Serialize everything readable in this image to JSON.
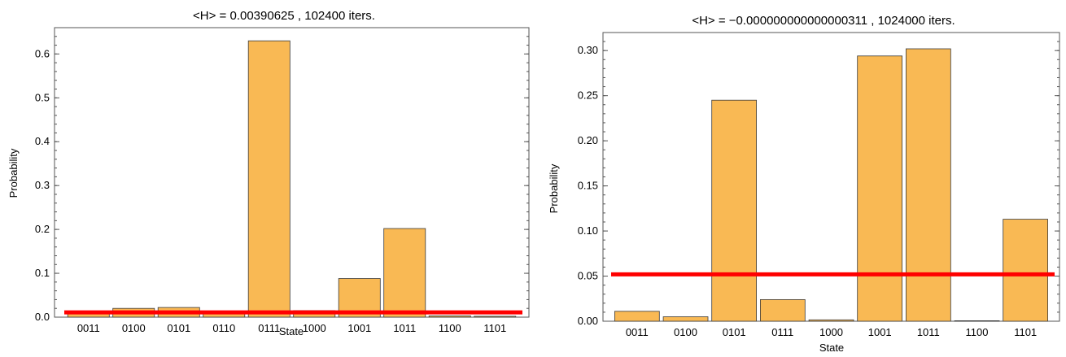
{
  "chart_data": [
    {
      "type": "bar",
      "title": "<H> = 0.00390625 , 102400 iters.",
      "xlabel": "State",
      "ylabel": "Probability",
      "categories": [
        "0011",
        "0100",
        "0101",
        "0110",
        "0111",
        "1000",
        "1001",
        "1011",
        "1100",
        "1101"
      ],
      "values": [
        0.01,
        0.02,
        0.022,
        0.01,
        0.63,
        0.015,
        0.088,
        0.202,
        0.003,
        0.002
      ],
      "ylim": [
        0,
        0.66
      ],
      "yticks": [
        0.0,
        0.1,
        0.2,
        0.3,
        0.4,
        0.5,
        0.6
      ],
      "ytick_labels": [
        "0.0",
        "0.1",
        "0.2",
        "0.3",
        "0.4",
        "0.5",
        "0.6"
      ],
      "reference_line": 0.011,
      "reference_color": "#ff0000",
      "bar_color": "#f9b954",
      "grid": false
    },
    {
      "type": "bar",
      "title": "<H> = −0.000000000000000311 , 1024000 iters.",
      "xlabel": "State",
      "ylabel": "Probability",
      "categories": [
        "0011",
        "0100",
        "0101",
        "0111",
        "1000",
        "1001",
        "1011",
        "1100",
        "1101"
      ],
      "values": [
        0.011,
        0.005,
        0.245,
        0.024,
        0.0015,
        0.294,
        0.302,
        0.0005,
        0.113
      ],
      "ylim": [
        0,
        0.32
      ],
      "yticks": [
        0.0,
        0.05,
        0.1,
        0.15,
        0.2,
        0.25,
        0.3
      ],
      "ytick_labels": [
        "0.00",
        "0.05",
        "0.10",
        "0.15",
        "0.20",
        "0.25",
        "0.30"
      ],
      "reference_line": 0.052,
      "reference_color": "#ff0000",
      "bar_color": "#f9b954",
      "grid": false
    }
  ]
}
